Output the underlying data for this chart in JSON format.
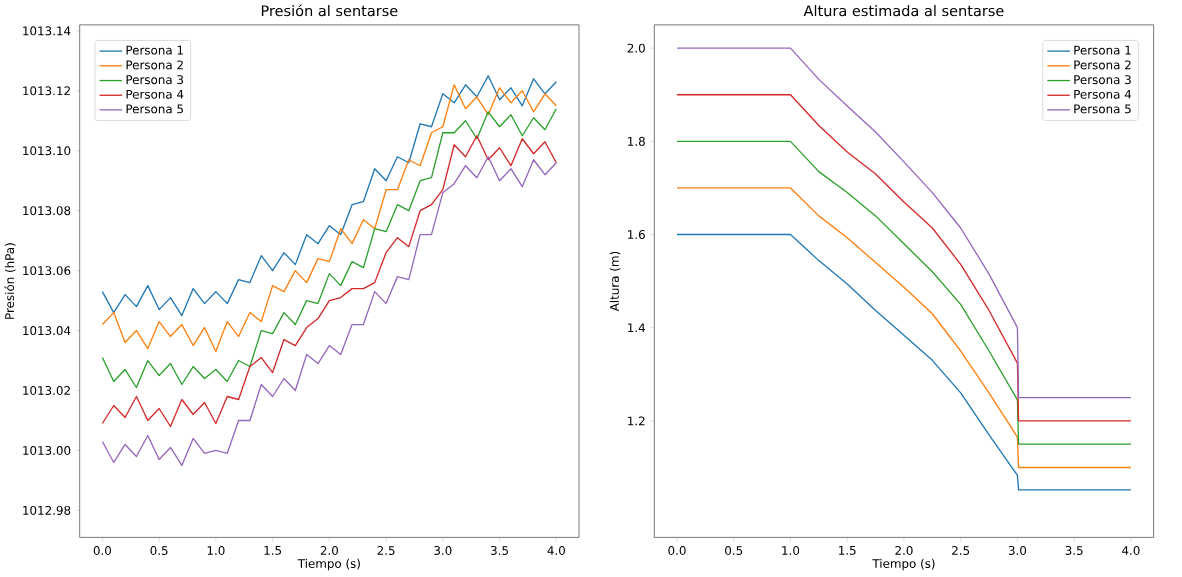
{
  "chart_data": [
    {
      "type": "line",
      "title": "Presión al sentarse",
      "xlabel": "Tiempo (s)",
      "ylabel": "Presión (hPa)",
      "x": [
        0,
        0.1,
        0.2,
        0.3,
        0.4,
        0.5,
        0.6,
        0.7,
        0.8,
        0.9,
        1.0,
        1.1,
        1.2,
        1.3,
        1.4,
        1.5,
        1.6,
        1.7,
        1.8,
        1.9,
        2.0,
        2.1,
        2.2,
        2.3,
        2.4,
        2.5,
        2.6,
        2.7,
        2.8,
        2.9,
        3.0,
        3.1,
        3.2,
        3.3,
        3.4,
        3.5,
        3.6,
        3.7,
        3.8,
        3.9,
        4.0
      ],
      "series": [
        {
          "name": "Persona 1",
          "color": "#1f77b4",
          "values": [
            1013.053,
            1013.046,
            1013.052,
            1013.048,
            1013.055,
            1013.047,
            1013.051,
            1013.045,
            1013.054,
            1013.049,
            1013.053,
            1013.049,
            1013.057,
            1013.056,
            1013.065,
            1013.06,
            1013.066,
            1013.062,
            1013.072,
            1013.069,
            1013.075,
            1013.072,
            1013.082,
            1013.083,
            1013.094,
            1013.09,
            1013.098,
            1013.096,
            1013.109,
            1013.108,
            1013.119,
            1013.116,
            1013.122,
            1013.118,
            1013.125,
            1013.117,
            1013.121,
            1013.115,
            1013.124,
            1013.119,
            1013.123
          ]
        },
        {
          "name": "Persona 2",
          "color": "#ff7f0e",
          "values": [
            1013.042,
            1013.046,
            1013.036,
            1013.04,
            1013.034,
            1013.043,
            1013.038,
            1013.042,
            1013.035,
            1013.041,
            1013.033,
            1013.043,
            1013.038,
            1013.046,
            1013.043,
            1013.055,
            1013.053,
            1013.06,
            1013.056,
            1013.064,
            1013.063,
            1013.074,
            1013.069,
            1013.077,
            1013.074,
            1013.087,
            1013.087,
            1013.097,
            1013.095,
            1013.106,
            1013.108,
            1013.122,
            1013.114,
            1013.118,
            1013.112,
            1013.121,
            1013.116,
            1013.12,
            1013.113,
            1013.119,
            1013.115
          ]
        },
        {
          "name": "Persona 3",
          "color": "#2ca02c",
          "values": [
            1013.031,
            1013.023,
            1013.027,
            1013.021,
            1013.03,
            1013.025,
            1013.029,
            1013.022,
            1013.028,
            1013.024,
            1013.027,
            1013.023,
            1013.03,
            1013.028,
            1013.04,
            1013.039,
            1013.046,
            1013.042,
            1013.05,
            1013.049,
            1013.059,
            1013.055,
            1013.063,
            1013.061,
            1013.074,
            1013.073,
            1013.082,
            1013.08,
            1013.09,
            1013.091,
            1013.106,
            1013.106,
            1013.11,
            1013.104,
            1013.113,
            1013.108,
            1013.112,
            1013.105,
            1013.111,
            1013.107,
            1013.114
          ]
        },
        {
          "name": "Persona 4",
          "color": "#d62728",
          "values": [
            1013.009,
            1013.015,
            1013.011,
            1013.018,
            1013.01,
            1013.014,
            1013.008,
            1013.017,
            1013.012,
            1013.016,
            1013.009,
            1013.018,
            1013.017,
            1013.028,
            1013.031,
            1013.026,
            1013.037,
            1013.035,
            1013.041,
            1013.044,
            1013.05,
            1013.051,
            1013.054,
            1013.054,
            1013.056,
            1013.066,
            1013.071,
            1013.068,
            1013.08,
            1013.082,
            1013.087,
            1013.102,
            1013.098,
            1013.105,
            1013.097,
            1013.101,
            1013.095,
            1013.104,
            1013.099,
            1013.103,
            1013.096
          ]
        },
        {
          "name": "Persona 5",
          "color": "#9467bd",
          "values": [
            1013.003,
            1012.996,
            1013.002,
            1012.998,
            1013.005,
            1012.997,
            1013.001,
            1012.995,
            1013.004,
            1012.999,
            1013.0,
            1012.999,
            1013.01,
            1013.01,
            1013.022,
            1013.018,
            1013.024,
            1013.02,
            1013.032,
            1013.029,
            1013.035,
            1013.032,
            1013.042,
            1013.042,
            1013.053,
            1013.049,
            1013.058,
            1013.057,
            1013.072,
            1013.072,
            1013.086,
            1013.089,
            1013.095,
            1013.091,
            1013.098,
            1013.09,
            1013.094,
            1013.088,
            1013.097,
            1013.092,
            1013.096
          ]
        }
      ],
      "xlim": [
        -0.2,
        4.2
      ],
      "ylim": [
        1012.971,
        1013.142
      ],
      "xticks": [
        {
          "value": 0,
          "label": "0.0"
        },
        0.5,
        {
          "value": 1,
          "label": "1.0"
        },
        1.5,
        {
          "value": 2,
          "label": "2.0"
        },
        2.5,
        {
          "value": 3,
          "label": "3.0"
        },
        3.5,
        {
          "value": 4,
          "label": "4.0"
        }
      ],
      "yticks": [
        1012.98,
        {
          "value": 1013.0,
          "label": "1013.00"
        },
        1013.02,
        1013.04,
        1013.06,
        1013.08,
        {
          "value": 1013.1,
          "label": "1013.10"
        },
        1013.12,
        1013.14
      ],
      "legend": "top left",
      "grid": false
    },
    {
      "type": "line",
      "title": "Altura estimada al sentarse",
      "xlabel": "Tiempo (s)",
      "ylabel": "Altura (m)",
      "x": [
        0,
        1.0,
        1.25,
        1.5,
        1.75,
        2.0,
        2.25,
        2.5,
        2.75,
        3.0,
        3.01,
        4.0
      ],
      "series": [
        {
          "name": "Persona 1",
          "color": "#1f77b4",
          "values": [
            1.6,
            1.6,
            1.544,
            1.494,
            1.437,
            1.384,
            1.33,
            1.26,
            1.17,
            1.083,
            1.052,
            1.052
          ]
        },
        {
          "name": "Persona 2",
          "color": "#ff7f0e",
          "values": [
            1.7,
            1.7,
            1.64,
            1.593,
            1.54,
            1.487,
            1.43,
            1.35,
            1.26,
            1.165,
            1.1,
            1.1
          ]
        },
        {
          "name": "Persona 3",
          "color": "#2ca02c",
          "values": [
            1.8,
            1.8,
            1.735,
            1.69,
            1.64,
            1.58,
            1.52,
            1.45,
            1.35,
            1.245,
            1.15,
            1.15
          ]
        },
        {
          "name": "Persona 4",
          "color": "#d62728",
          "values": [
            1.9,
            1.9,
            1.834,
            1.777,
            1.73,
            1.67,
            1.614,
            1.536,
            1.437,
            1.324,
            1.2,
            1.2
          ]
        },
        {
          "name": "Persona 5",
          "color": "#9467bd",
          "values": [
            2.0,
            2.0,
            1.933,
            1.876,
            1.82,
            1.756,
            1.69,
            1.614,
            1.515,
            1.4,
            1.25,
            1.25
          ]
        }
      ],
      "xlim": [
        -0.2,
        4.2
      ],
      "ylim": [
        0.95,
        2.05
      ],
      "xticks": [
        {
          "value": 0,
          "label": "0.0"
        },
        0.5,
        {
          "value": 1,
          "label": "1.0"
        },
        1.5,
        {
          "value": 2,
          "label": "2.0"
        },
        2.5,
        {
          "value": 3,
          "label": "3.0"
        },
        3.5,
        {
          "value": 4,
          "label": "4.0"
        }
      ],
      "yticks": [
        1.2,
        1.4,
        1.6,
        1.8,
        {
          "value": 2.0,
          "label": "2.0"
        }
      ],
      "legend": "top right",
      "grid": false
    }
  ]
}
